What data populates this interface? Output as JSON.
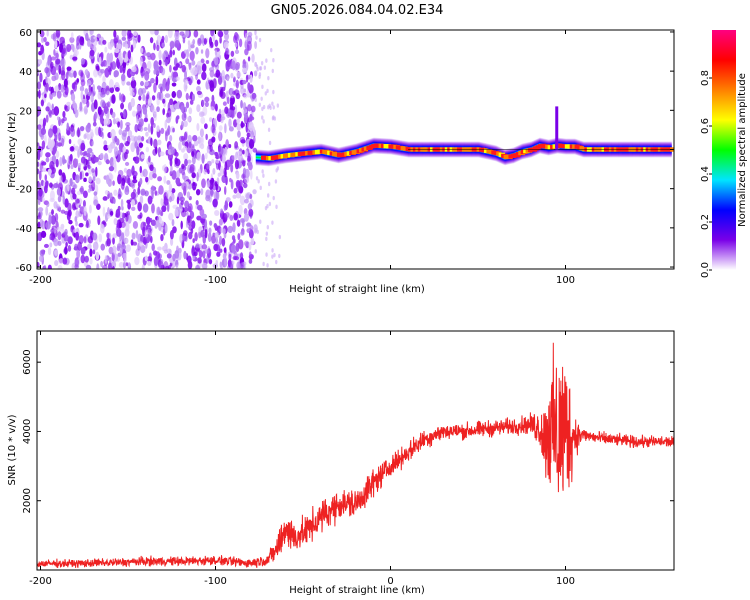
{
  "title": "GN05.2026.084.04.02.E34",
  "chart_data": [
    {
      "type": "heatmap",
      "xlabel": "Height of straight line (km)",
      "ylabel": "Frequency (Hz)",
      "xlim": [
        -202,
        162
      ],
      "ylim": [
        -61,
        61
      ],
      "x_ticks": [
        -200,
        -100,
        0,
        100
      ],
      "x_tick_labels": [
        "-200",
        "-100",
        "",
        "100"
      ],
      "y_ticks": [
        -60,
        -40,
        -20,
        0,
        20,
        40,
        60
      ],
      "y_tick_labels": [
        "-60",
        "-40",
        "-20",
        "0",
        "20",
        "40",
        "60"
      ],
      "noise_region_x": [
        -202,
        -77
      ],
      "signal_band": {
        "x": [
          -77,
          -70,
          -60,
          -50,
          -40,
          -30,
          -20,
          -10,
          0,
          10,
          20,
          30,
          40,
          50,
          60,
          65,
          70,
          75,
          80,
          85,
          90,
          95,
          100,
          105,
          110,
          120,
          130,
          140,
          150,
          160
        ],
        "center_freq": [
          -4,
          -4.5,
          -3,
          -2,
          -1,
          -3,
          -1,
          2,
          1.5,
          0,
          0,
          0,
          0,
          0,
          -2,
          -4,
          -3,
          -1,
          0,
          2,
          1,
          2,
          1.5,
          1.5,
          0,
          0,
          0,
          0,
          0,
          0
        ]
      },
      "spike": {
        "x": 95,
        "freq_range": [
          0,
          22
        ]
      },
      "colorbar": {
        "label": "Normalized spectral amplitude",
        "range": [
          0,
          1
        ],
        "ticks": [
          0.0,
          0.2,
          0.4,
          0.6,
          0.8
        ],
        "tick_labels": [
          "0.0",
          "0.2",
          "0.4",
          "0.6",
          "0.8"
        ],
        "colors": [
          "#ffffff",
          "#7a00e8",
          "#0000ff",
          "#00e5ff",
          "#00ff00",
          "#ffff00",
          "#ff8000",
          "#ff0000",
          "#ff0080"
        ]
      }
    },
    {
      "type": "line",
      "xlabel": "Height of straight line (km)",
      "ylabel": "SNR (10 * v/v)",
      "xlim": [
        -202,
        162
      ],
      "ylim": [
        0,
        6900
      ],
      "x_ticks": [
        -200,
        -100,
        0,
        100
      ],
      "x_tick_labels": [
        "-200",
        "-100",
        "0",
        "100"
      ],
      "y_ticks": [
        2000,
        4000,
        6000
      ],
      "y_tick_labels": [
        "2000",
        "4000",
        "6000"
      ],
      "series": [
        {
          "name": "SNR",
          "color": "#ee2222",
          "x": [
            -202,
            -180,
            -160,
            -140,
            -120,
            -100,
            -80,
            -70,
            -65,
            -60,
            -55,
            -50,
            -40,
            -30,
            -20,
            -10,
            0,
            10,
            20,
            30,
            40,
            50,
            60,
            70,
            80,
            85,
            88,
            90,
            93,
            95,
            98,
            100,
            103,
            105,
            110,
            120,
            130,
            140,
            150,
            162
          ],
          "y": [
            180,
            190,
            210,
            250,
            250,
            280,
            200,
            300,
            600,
            1200,
            950,
            1050,
            1500,
            1900,
            1900,
            2500,
            3000,
            3400,
            3800,
            4000,
            4000,
            4050,
            4100,
            4150,
            4200,
            4100,
            3800,
            4000,
            4000,
            3800,
            4000,
            4100,
            3900,
            3900,
            3900,
            3800,
            3750,
            3700,
            3700,
            3700
          ],
          "noise_amplitude": [
            120,
            120,
            130,
            140,
            140,
            140,
            140,
            180,
            400,
            600,
            500,
            450,
            500,
            450,
            450,
            450,
            300,
            300,
            300,
            250,
            250,
            250,
            250,
            250,
            300,
            600,
            1000,
            1800,
            2200,
            2600,
            2600,
            2400,
            1600,
            700,
            200,
            200,
            180,
            180,
            180,
            180
          ]
        }
      ]
    }
  ]
}
